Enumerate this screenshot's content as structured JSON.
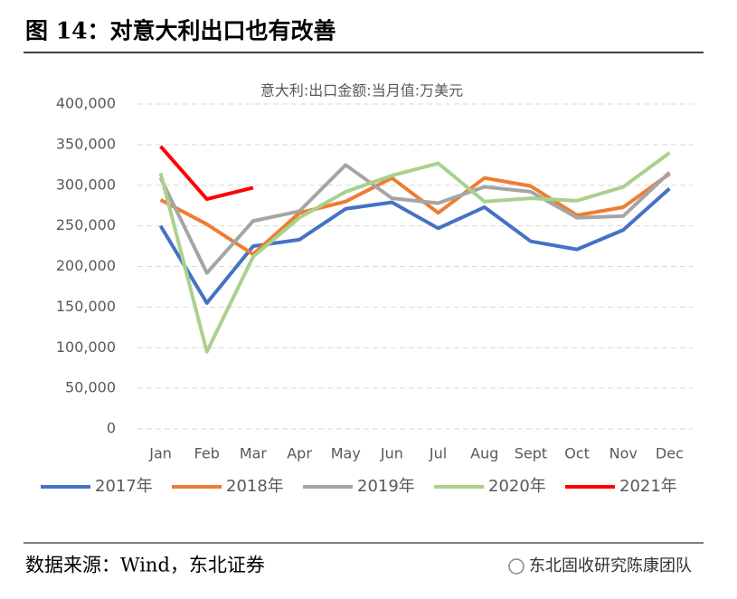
{
  "header": {
    "title": "图 14：对意大利出口也有改善"
  },
  "footer": {
    "source": "数据来源：Wind，东北证券",
    "watermark": "东北固收研究陈康团队"
  },
  "chart_data": {
    "type": "line",
    "title": "意大利:出口金额:当月值:万美元",
    "categories": [
      "Jan",
      "Feb",
      "Mar",
      "Apr",
      "May",
      "Jun",
      "Jul",
      "Aug",
      "Sept",
      "Oct",
      "Nov",
      "Dec"
    ],
    "series": [
      {
        "name": "2017年",
        "color": "#4472c4",
        "values": [
          250000,
          155000,
          225000,
          233000,
          271000,
          279000,
          247000,
          273000,
          231000,
          221000,
          245000,
          296000
        ]
      },
      {
        "name": "2018年",
        "color": "#ed7d31",
        "values": [
          282000,
          252000,
          215000,
          266000,
          280000,
          309000,
          266000,
          309000,
          299000,
          263000,
          273000,
          314000
        ]
      },
      {
        "name": "2019年",
        "color": "#a5a5a5",
        "values": [
          309000,
          192000,
          256000,
          268000,
          325000,
          284000,
          278000,
          298000,
          292000,
          260000,
          262000,
          316000
        ]
      },
      {
        "name": "2020年",
        "color": "#a9d18e",
        "values": [
          315000,
          95000,
          212000,
          260000,
          292000,
          312000,
          327000,
          280000,
          284000,
          281000,
          298000,
          340000
        ]
      },
      {
        "name": "2021年",
        "color": "#ff0000",
        "values": [
          348000,
          283000,
          297000,
          null,
          null,
          null,
          null,
          null,
          null,
          null,
          null,
          null
        ]
      }
    ],
    "ylim": [
      0,
      400000
    ],
    "yticks": [
      0,
      {
        "value": 50000,
        "label": "50,000"
      },
      {
        "value": 100000,
        "label": "100,000"
      },
      {
        "value": 150000,
        "label": "150,000"
      },
      {
        "value": 200000,
        "label": "200,000"
      },
      {
        "value": 250000,
        "label": "250,000"
      },
      {
        "value": 300000,
        "label": "300,000"
      },
      {
        "value": 350000,
        "label": "350,000"
      },
      {
        "value": 400000,
        "label": "400,000"
      }
    ],
    "grid": true,
    "legend": "bottom"
  }
}
